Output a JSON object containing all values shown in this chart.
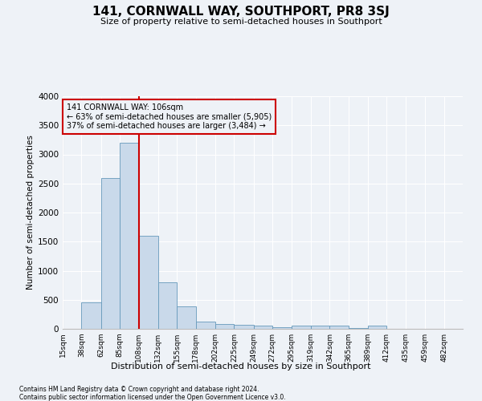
{
  "title": "141, CORNWALL WAY, SOUTHPORT, PR8 3SJ",
  "subtitle": "Size of property relative to semi-detached houses in Southport",
  "xlabel": "Distribution of semi-detached houses by size in Southport",
  "ylabel": "Number of semi-detached properties",
  "footnote1": "Contains HM Land Registry data © Crown copyright and database right 2024.",
  "footnote2": "Contains public sector information licensed under the Open Government Licence v3.0.",
  "annotation_line1": "141 CORNWALL WAY: 106sqm",
  "annotation_line2": "← 63% of semi-detached houses are smaller (5,905)",
  "annotation_line3": "37% of semi-detached houses are larger (3,484) →",
  "bar_color": "#c9d9ea",
  "bar_edge_color": "#6699bb",
  "line_color": "#cc0000",
  "annotation_box_edge_color": "#cc0000",
  "background_color": "#eef2f7",
  "grid_color": "#ffffff",
  "bin_labels": [
    "15sqm",
    "38sqm",
    "62sqm",
    "85sqm",
    "108sqm",
    "132sqm",
    "155sqm",
    "178sqm",
    "202sqm",
    "225sqm",
    "249sqm",
    "272sqm",
    "295sqm",
    "319sqm",
    "342sqm",
    "365sqm",
    "389sqm",
    "412sqm",
    "435sqm",
    "459sqm",
    "482sqm"
  ],
  "bin_edges": [
    15,
    38,
    62,
    85,
    108,
    132,
    155,
    178,
    202,
    225,
    249,
    272,
    295,
    319,
    342,
    365,
    389,
    412,
    435,
    459,
    482
  ],
  "bar_heights": [
    5,
    450,
    2600,
    3200,
    1600,
    800,
    380,
    130,
    80,
    70,
    50,
    30,
    50,
    50,
    50,
    15,
    50,
    5,
    0,
    0,
    0
  ],
  "property_line_x": 108,
  "ylim": [
    0,
    4000
  ],
  "yticks": [
    0,
    500,
    1000,
    1500,
    2000,
    2500,
    3000,
    3500,
    4000
  ]
}
